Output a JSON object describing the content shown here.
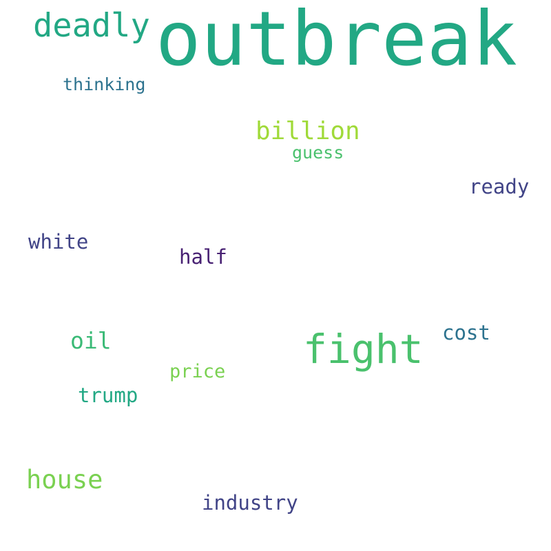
{
  "words": [
    {
      "key": "outbreak",
      "text": "outbreak",
      "color": "#22a884"
    },
    {
      "key": "deadly",
      "text": "deadly",
      "color": "#22a884"
    },
    {
      "key": "thinking",
      "text": "thinking",
      "color": "#2c728e"
    },
    {
      "key": "billion",
      "text": "billion",
      "color": "#a0da39"
    },
    {
      "key": "guess",
      "text": "guess",
      "color": "#4ac16d"
    },
    {
      "key": "ready",
      "text": "ready",
      "color": "#414487"
    },
    {
      "key": "white",
      "text": "white",
      "color": "#414487"
    },
    {
      "key": "half",
      "text": "half",
      "color": "#482173"
    },
    {
      "key": "oil",
      "text": "oil",
      "color": "#3aba76"
    },
    {
      "key": "fight",
      "text": "fight",
      "color": "#4ac16d"
    },
    {
      "key": "cost",
      "text": "cost",
      "color": "#2c728e"
    },
    {
      "key": "price",
      "text": "price",
      "color": "#7ad151"
    },
    {
      "key": "trump",
      "text": "trump",
      "color": "#22a884"
    },
    {
      "key": "house",
      "text": "house",
      "color": "#7ad151"
    },
    {
      "key": "industry",
      "text": "industry",
      "color": "#414487"
    }
  ]
}
